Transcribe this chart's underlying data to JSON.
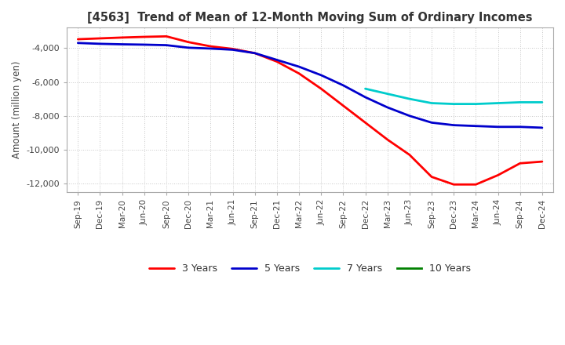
{
  "title": "[4563]  Trend of Mean of 12-Month Moving Sum of Ordinary Incomes",
  "ylabel": "Amount (million yen)",
  "ylim": [
    -12500,
    -2800
  ],
  "yticks": [
    -12000,
    -10000,
    -8000,
    -6000,
    -4000
  ],
  "background_color": "#ffffff",
  "grid_color": "#c8c8c8",
  "x_labels": [
    "Sep-19",
    "Dec-19",
    "Mar-20",
    "Jun-20",
    "Sep-20",
    "Dec-20",
    "Mar-21",
    "Jun-21",
    "Sep-21",
    "Dec-21",
    "Mar-22",
    "Jun-22",
    "Sep-22",
    "Dec-22",
    "Mar-23",
    "Jun-23",
    "Sep-23",
    "Dec-23",
    "Mar-24",
    "Jun-24",
    "Sep-24",
    "Dec-24"
  ],
  "n_points": 22,
  "series": {
    "3years": {
      "color": "#ff0000",
      "label": "3 Years",
      "x_indices": [
        0,
        1,
        2,
        3,
        4,
        5,
        6,
        7,
        8,
        9,
        10,
        11,
        12,
        13,
        14,
        15,
        16,
        17,
        18,
        19,
        20,
        21
      ],
      "y_values": [
        -3480,
        -3430,
        -3380,
        -3340,
        -3310,
        -3650,
        -3900,
        -4050,
        -4300,
        -4800,
        -5500,
        -6400,
        -7400,
        -8400,
        -9400,
        -10300,
        -11600,
        -12050,
        -12050,
        -11500,
        -10800,
        -10700
      ]
    },
    "5years": {
      "color": "#0000cc",
      "label": "5 Years",
      "x_indices": [
        0,
        1,
        2,
        3,
        4,
        5,
        6,
        7,
        8,
        9,
        10,
        11,
        12,
        13,
        14,
        15,
        16,
        17,
        18,
        19,
        20,
        21
      ],
      "y_values": [
        -3700,
        -3750,
        -3780,
        -3800,
        -3830,
        -3980,
        -4030,
        -4100,
        -4300,
        -4700,
        -5100,
        -5600,
        -6200,
        -6900,
        -7500,
        -8000,
        -8400,
        -8550,
        -8600,
        -8650,
        -8650,
        -8700
      ]
    },
    "7years": {
      "color": "#00cccc",
      "label": "7 Years",
      "x_indices": [
        13,
        14,
        15,
        16,
        17,
        18,
        19,
        20,
        21
      ],
      "y_values": [
        -6400,
        -6700,
        -7000,
        -7250,
        -7300,
        -7300,
        -7250,
        -7200,
        -7200
      ]
    },
    "10years": {
      "color": "#008000",
      "label": "10 Years",
      "x_indices": [],
      "y_values": []
    }
  }
}
